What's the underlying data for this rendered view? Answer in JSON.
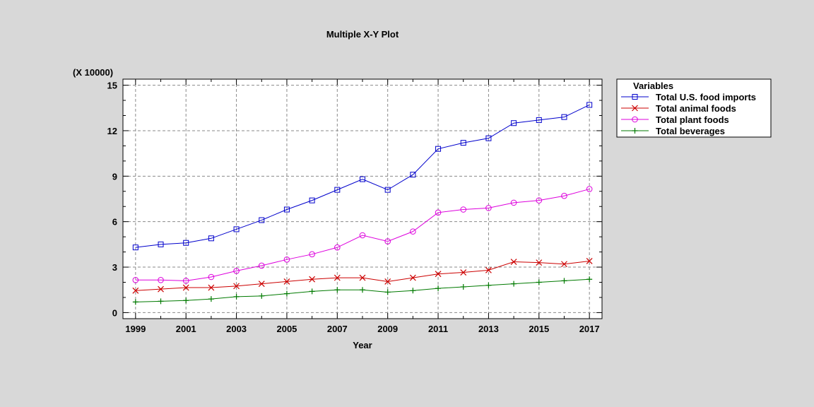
{
  "chart_data": {
    "type": "line",
    "title": "Multiple X-Y Plot",
    "xlabel": "Year",
    "ylabel": "",
    "y_multiplier_label": "(X 10000)",
    "xlim": [
      1998.5,
      2017.5
    ],
    "ylim": [
      -0.4,
      15.4
    ],
    "x_ticks": [
      1999,
      2001,
      2003,
      2005,
      2007,
      2009,
      2011,
      2013,
      2015,
      2017
    ],
    "y_ticks": [
      0,
      3,
      6,
      9,
      12,
      15
    ],
    "grid": true,
    "legend_position": "right",
    "legend_title": "Variables",
    "x": [
      1999,
      2000,
      2001,
      2002,
      2003,
      2004,
      2005,
      2006,
      2007,
      2008,
      2009,
      2010,
      2011,
      2012,
      2013,
      2014,
      2015,
      2016,
      2017
    ],
    "series": [
      {
        "name": "Total U.S. food imports",
        "color": "#0000cc",
        "marker": "square",
        "values": [
          4.3,
          4.5,
          4.6,
          4.9,
          5.5,
          6.1,
          6.8,
          7.4,
          8.1,
          8.8,
          8.1,
          9.1,
          10.8,
          11.2,
          11.5,
          12.5,
          12.7,
          12.9,
          13.7
        ]
      },
      {
        "name": "Total animal foods",
        "color": "#cc0000",
        "marker": "x",
        "values": [
          1.45,
          1.55,
          1.65,
          1.65,
          1.75,
          1.9,
          2.05,
          2.2,
          2.3,
          2.3,
          2.05,
          2.3,
          2.55,
          2.65,
          2.8,
          3.35,
          3.3,
          3.2,
          3.4
        ]
      },
      {
        "name": "Total plant foods",
        "color": "#dd00dd",
        "marker": "circle",
        "values": [
          2.15,
          2.15,
          2.1,
          2.35,
          2.75,
          3.1,
          3.5,
          3.85,
          4.3,
          5.1,
          4.7,
          5.35,
          6.6,
          6.8,
          6.9,
          7.25,
          7.4,
          7.7,
          8.15
        ]
      },
      {
        "name": "Total beverages",
        "color": "#007a00",
        "marker": "plus",
        "values": [
          0.7,
          0.75,
          0.8,
          0.9,
          1.05,
          1.1,
          1.25,
          1.4,
          1.5,
          1.5,
          1.35,
          1.45,
          1.6,
          1.7,
          1.8,
          1.9,
          2.0,
          2.1,
          2.2
        ]
      }
    ]
  }
}
